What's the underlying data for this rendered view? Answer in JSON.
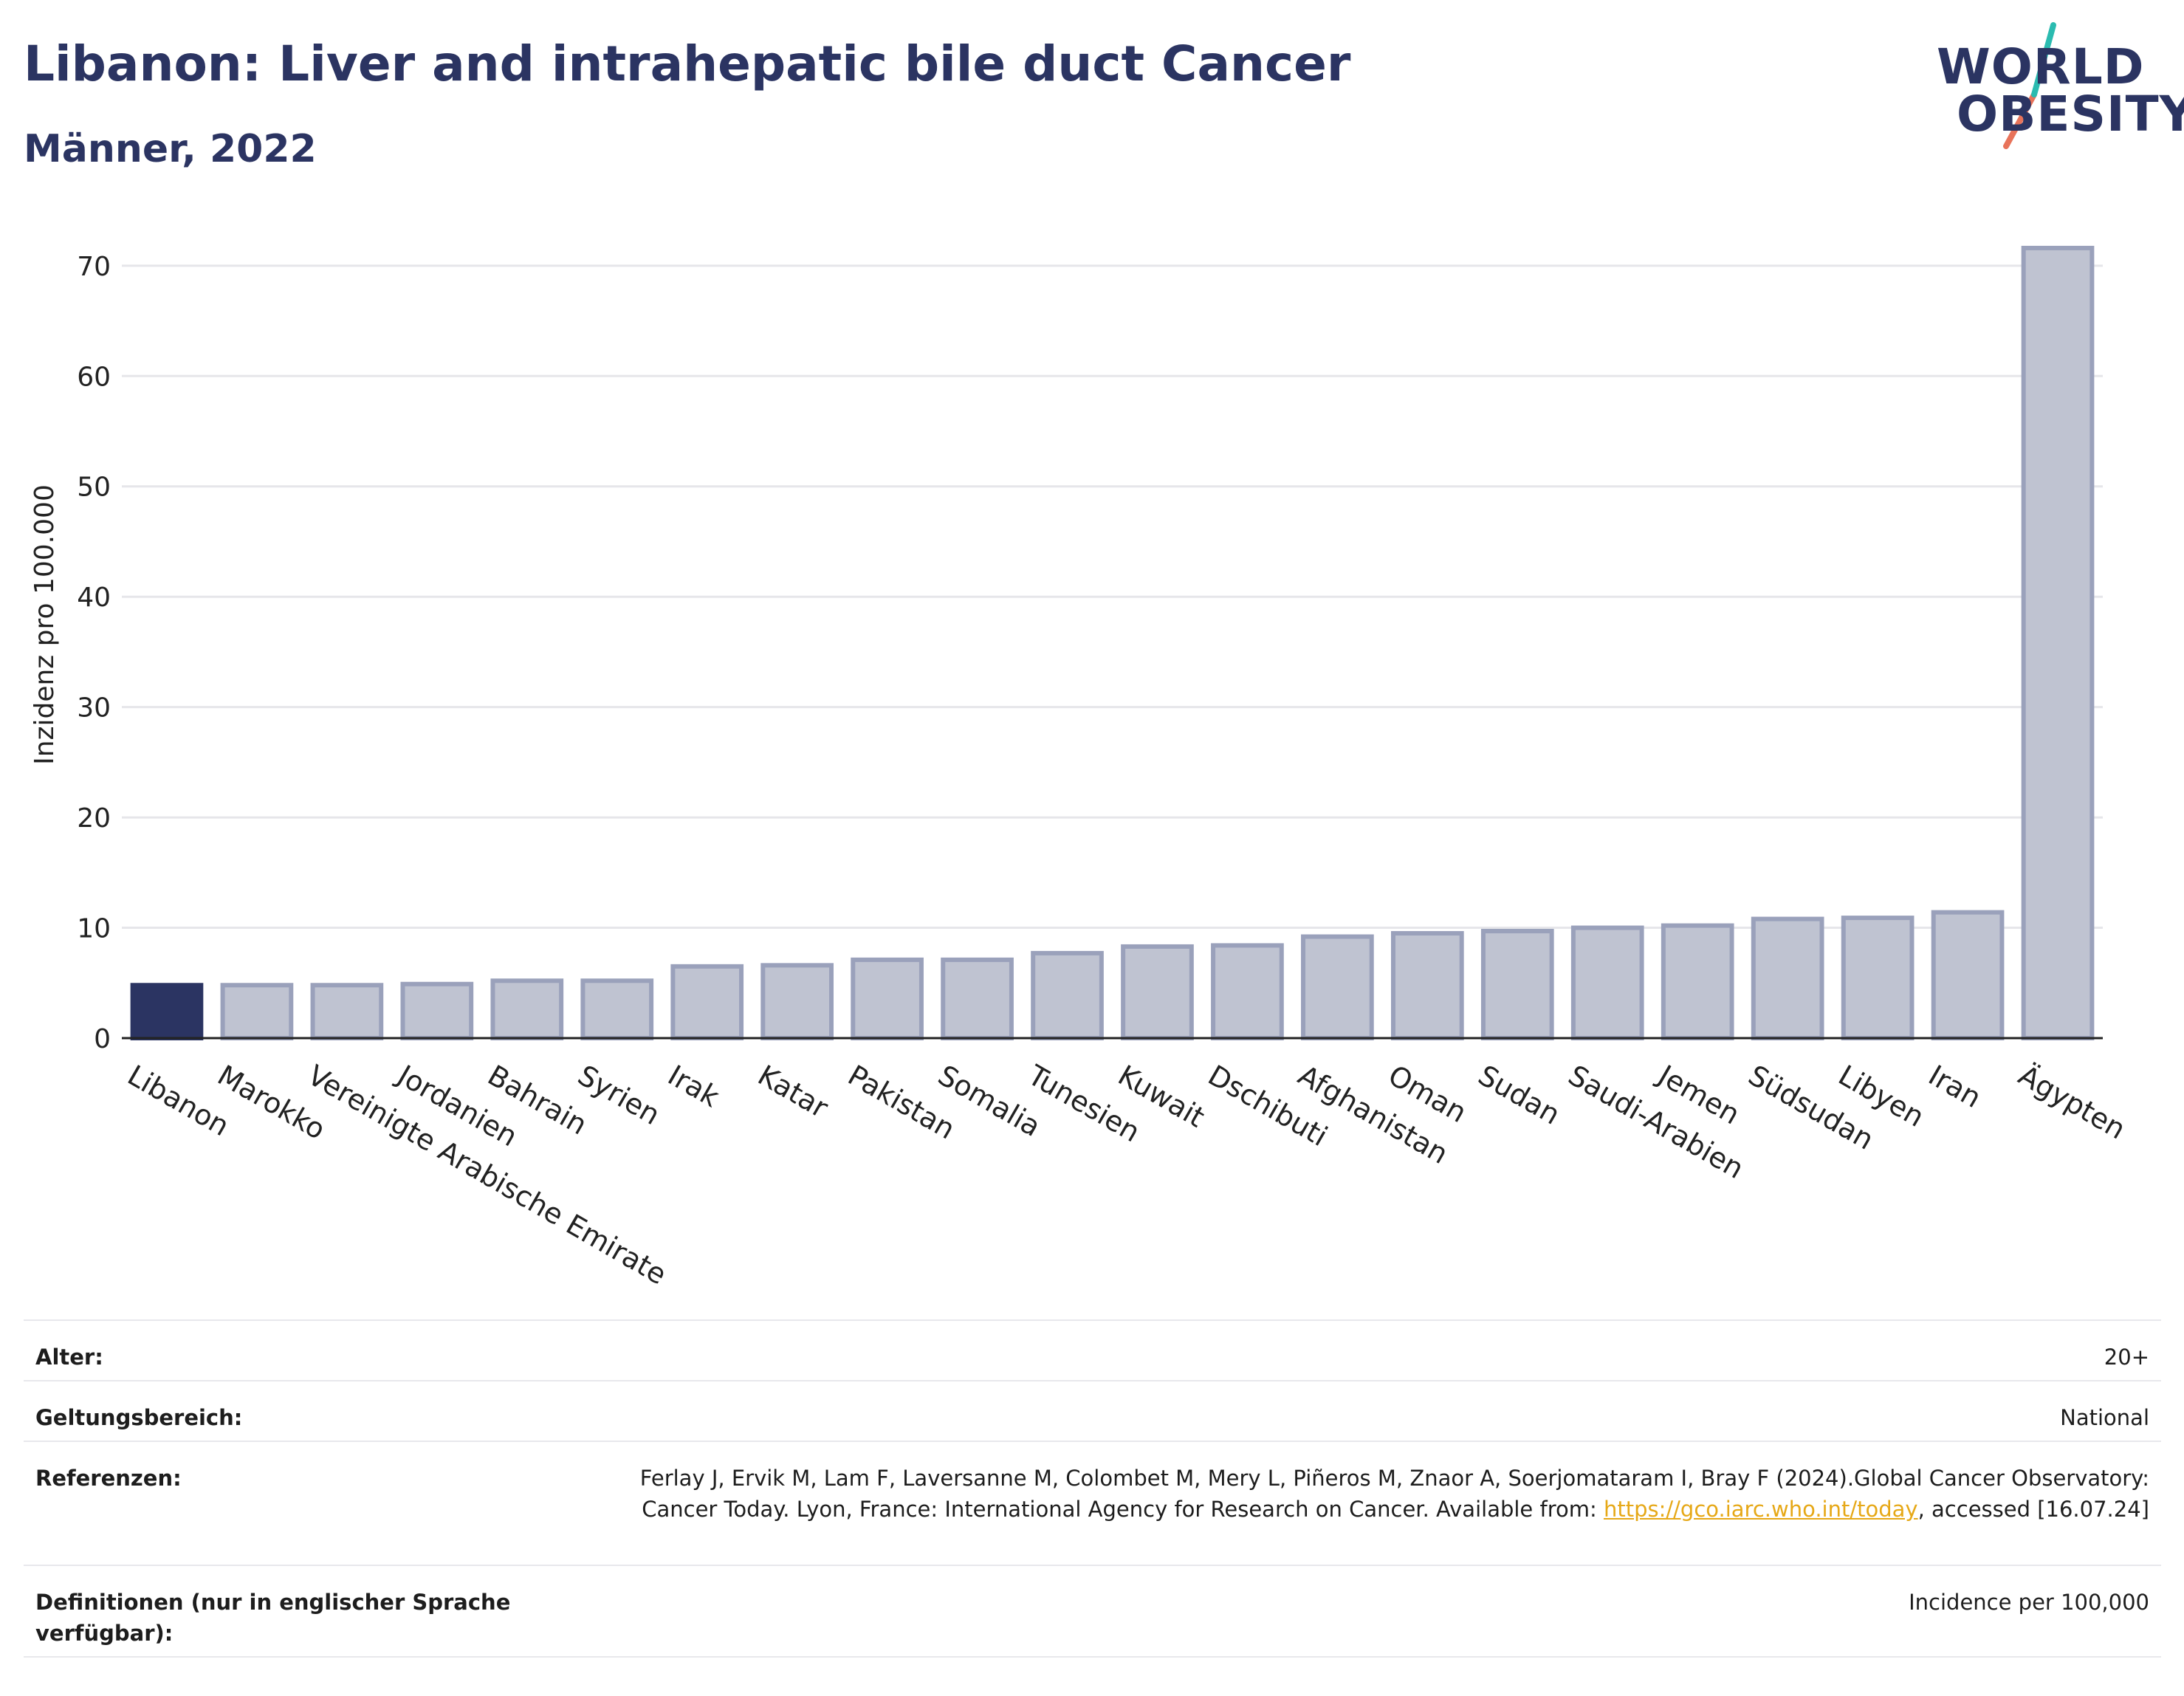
{
  "header": {
    "title": "Libanon: Liver and intrahepatic bile duct Cancer",
    "subtitle": "Männer, 2022"
  },
  "logo": {
    "line1": "WORLD",
    "line2": "OBESITY",
    "accent_colors": [
      "#2bbbb0",
      "#e8735a"
    ]
  },
  "colors": {
    "highlight": "#2b3462",
    "bar": "#bfc3d1",
    "bar_outline": "#9aa1bb",
    "axis": "#222222",
    "grid": "#e6e6ea"
  },
  "chart_data": {
    "type": "bar",
    "title": "Libanon: Liver and intrahepatic bile duct Cancer",
    "subtitle": "Männer, 2022",
    "xlabel": "",
    "ylabel": "Inzidenz pro 100.000",
    "ylim": [
      0,
      73
    ],
    "yticks": [
      0,
      10,
      20,
      30,
      40,
      50,
      60,
      70
    ],
    "grid": true,
    "highlight_category": "Libanon",
    "categories": [
      "Libanon",
      "Marokko",
      "Vereinigte Arabische Emirate",
      "Jordanien",
      "Bahrain",
      "Syrien",
      "Irak",
      "Katar",
      "Pakistan",
      "Somalia",
      "Tunesien",
      "Kuwait",
      "Dschibuti",
      "Afghanistan",
      "Oman",
      "Sudan",
      "Saudi-Arabien",
      "Jemen",
      "Südsudan",
      "Libyen",
      "Iran",
      "Ägypten"
    ],
    "values": [
      4.8,
      4.8,
      4.8,
      4.9,
      5.2,
      5.2,
      6.5,
      6.6,
      7.1,
      7.1,
      7.7,
      8.3,
      8.4,
      9.2,
      9.5,
      9.7,
      10.0,
      10.2,
      10.8,
      10.9,
      11.4,
      71.6
    ]
  },
  "meta": {
    "age_label": "Alter:",
    "age_value": "20+",
    "scope_label": "Geltungsbereich:",
    "scope_value": "National",
    "refs_label": "Referenzen:",
    "refs_text1": "Ferlay J, Ervik M, Lam F, Laversanne M, Colombet M, Mery L, Piñeros M, Znaor A, Soerjomataram I, Bray F (2024).Global Cancer Observatory: Cancer Today. Lyon, France: International Agency for Research on Cancer. Available from: ",
    "refs_link": "https://gco.iarc.who.int/today",
    "refs_text2": ", accessed [16.07.24]",
    "def_label": "Definitionen (nur in englischer Sprache verfügbar):",
    "def_value": "Incidence per 100,000"
  }
}
